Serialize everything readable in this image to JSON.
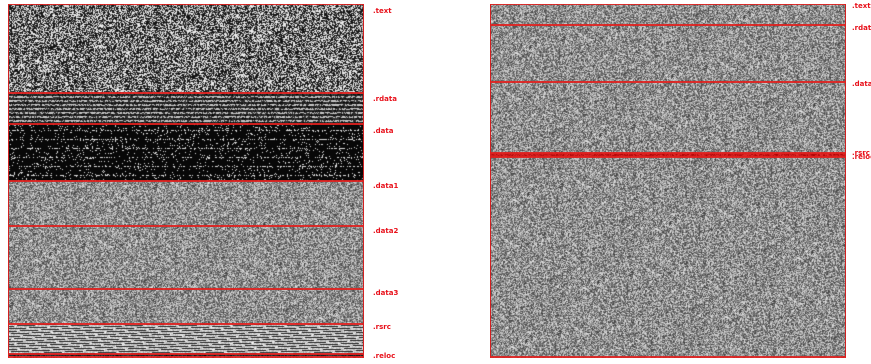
{
  "left_panel": {
    "sections": [
      {
        "label": ".text",
        "start": 0,
        "end": 0.252,
        "pattern": "noise-bw"
      },
      {
        "label": ".rdata",
        "start": 0.252,
        "end": 0.34,
        "pattern": "stripes-dark"
      },
      {
        "label": ".data",
        "start": 0.34,
        "end": 0.5,
        "pattern": "sparse-dark"
      },
      {
        "label": ".data1",
        "start": 0.5,
        "end": 0.628,
        "pattern": "noise-gray"
      },
      {
        "label": ".data2",
        "start": 0.628,
        "end": 0.806,
        "pattern": "noise-gray"
      },
      {
        "label": ".data3",
        "start": 0.806,
        "end": 0.904,
        "pattern": "noise-gray"
      },
      {
        "label": ".rsrc",
        "start": 0.904,
        "end": 0.99,
        "pattern": "stripes-light"
      },
      {
        "label": ".reloc",
        "start": 0.99,
        "end": 1.0,
        "pattern": "stripes-dark"
      }
    ]
  },
  "right_panel": {
    "sections": [
      {
        "label": ".text",
        "start": 0,
        "end": 0.058,
        "pattern": "noise-gray"
      },
      {
        "label": ".rdata",
        "start": 0.058,
        "end": 0.22,
        "pattern": "noise-gray"
      },
      {
        "label": ".data",
        "start": 0.22,
        "end": 0.42,
        "pattern": "noise-gray"
      },
      {
        "label": ".rsrc",
        "start": 0.42,
        "end": 0.432,
        "pattern": "red"
      },
      {
        "label": ".reloc",
        "start": 0.432,
        "end": 1.0,
        "pattern": "noise-gray"
      }
    ]
  },
  "colors": {
    "boundary": "#e0201e",
    "label": "#e8101a"
  }
}
